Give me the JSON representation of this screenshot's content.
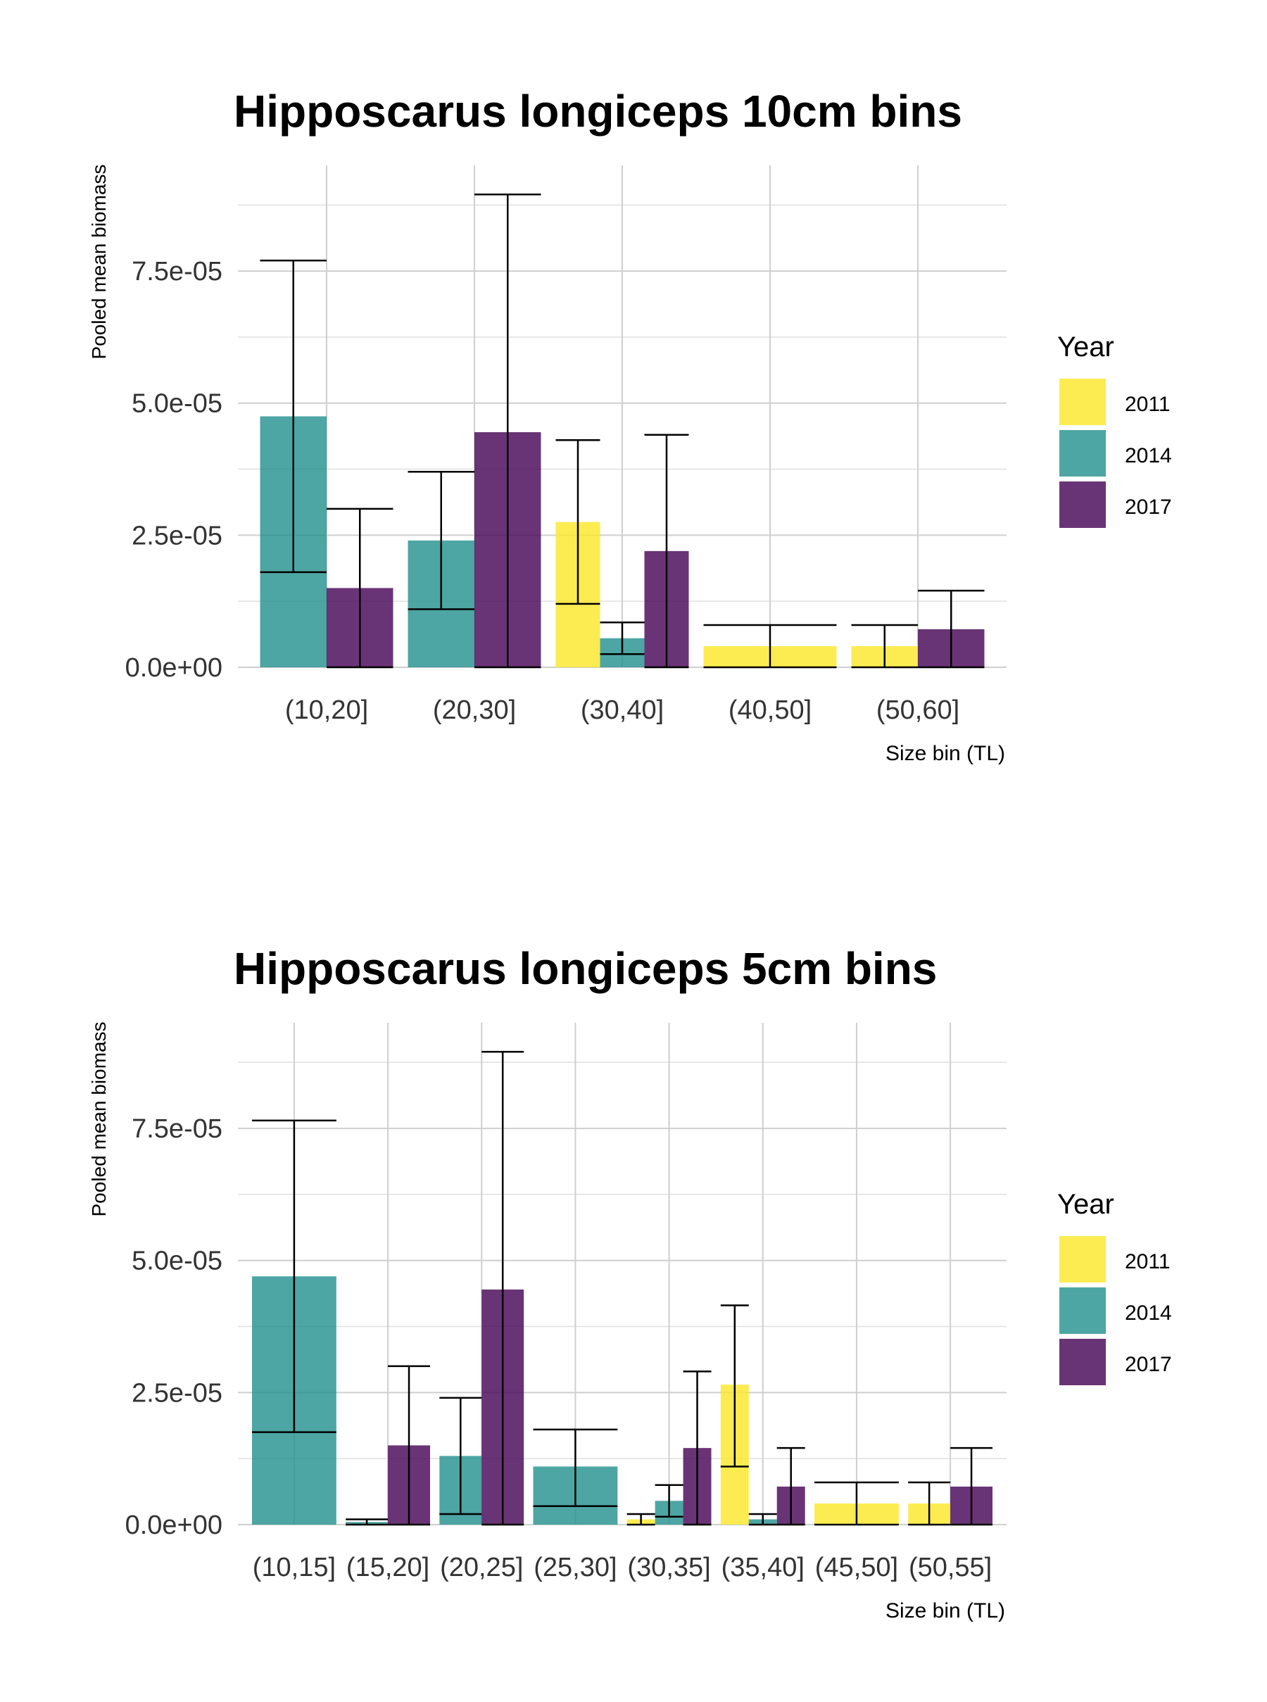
{
  "colors": {
    "2011": "#FDE725",
    "2014": "#21908C",
    "2017": "#440154"
  },
  "legend": {
    "title": "Year",
    "items": [
      "2011",
      "2014",
      "2017"
    ]
  },
  "chart_data": [
    {
      "type": "bar",
      "title": "Hipposcarus longiceps 10cm bins",
      "xlabel": "Size bin (TL)",
      "ylabel": "Pooled mean biomass",
      "ylim": [
        0,
        9.5e-05
      ],
      "yticks": [
        "0.0e+00",
        "2.5e-05",
        "5.0e-05",
        "7.5e-05"
      ],
      "ytick_values": [
        0,
        2.5e-05,
        5e-05,
        7.5e-05
      ],
      "grid": true,
      "legend_position": "right",
      "categories": [
        "(10,20]",
        "(20,30]",
        "(30,40]",
        "(40,50]",
        "(50,60]"
      ],
      "bars": [
        {
          "category": "(10,20]",
          "year": "2014",
          "slot": 0,
          "width": 2,
          "value": 4.75e-05,
          "err_low": 1.8e-05,
          "err_high": 7.7e-05
        },
        {
          "category": "(10,20]",
          "year": "2017",
          "slot": 1,
          "width": 2,
          "value": 1.5e-05,
          "err_low": 0.0,
          "err_high": 3e-05
        },
        {
          "category": "(20,30]",
          "year": "2014",
          "slot": 0,
          "width": 2,
          "value": 2.4e-05,
          "err_low": 1.1e-05,
          "err_high": 3.7e-05
        },
        {
          "category": "(20,30]",
          "year": "2017",
          "slot": 1,
          "width": 2,
          "value": 4.45e-05,
          "err_low": 0.0,
          "err_high": 8.95e-05
        },
        {
          "category": "(30,40]",
          "year": "2011",
          "slot": 0,
          "width": 3,
          "value": 2.75e-05,
          "err_low": 1.2e-05,
          "err_high": 4.3e-05
        },
        {
          "category": "(30,40]",
          "year": "2014",
          "slot": 1,
          "width": 3,
          "value": 5.5e-06,
          "err_low": 2.5e-06,
          "err_high": 8.5e-06
        },
        {
          "category": "(30,40]",
          "year": "2017",
          "slot": 2,
          "width": 3,
          "value": 2.2e-05,
          "err_low": 0.0,
          "err_high": 4.4e-05
        },
        {
          "category": "(40,50]",
          "year": "2011",
          "slot": 0,
          "width": 1,
          "value": 4e-06,
          "err_low": 0.0,
          "err_high": 8e-06
        },
        {
          "category": "(50,60]",
          "year": "2011",
          "slot": 0,
          "width": 2,
          "value": 4e-06,
          "err_low": 0.0,
          "err_high": 8e-06
        },
        {
          "category": "(50,60]",
          "year": "2017",
          "slot": 1,
          "width": 2,
          "value": 7.2e-06,
          "err_low": 0.0,
          "err_high": 1.45e-05
        }
      ]
    },
    {
      "type": "bar",
      "title": "Hipposcarus longiceps 5cm bins",
      "xlabel": "Size bin (TL)",
      "ylabel": "Pooled mean biomass",
      "ylim": [
        0,
        9.5e-05
      ],
      "yticks": [
        "0.0e+00",
        "2.5e-05",
        "5.0e-05",
        "7.5e-05"
      ],
      "ytick_values": [
        0,
        2.5e-05,
        5e-05,
        7.5e-05
      ],
      "grid": true,
      "legend_position": "right",
      "categories": [
        "(10,15]",
        "(15,20]",
        "(20,25]",
        "(25,30]",
        "(30,35]",
        "(35,40]",
        "(45,50]",
        "(50,55]"
      ],
      "bars": [
        {
          "category": "(10,15]",
          "year": "2014",
          "slot": 0,
          "width": 1,
          "value": 4.7e-05,
          "err_low": 1.75e-05,
          "err_high": 7.65e-05
        },
        {
          "category": "(15,20]",
          "year": "2014",
          "slot": 0,
          "width": 2,
          "value": 5e-07,
          "err_low": 0.0,
          "err_high": 1e-06
        },
        {
          "category": "(15,20]",
          "year": "2017",
          "slot": 1,
          "width": 2,
          "value": 1.5e-05,
          "err_low": 0.0,
          "err_high": 3e-05
        },
        {
          "category": "(20,25]",
          "year": "2014",
          "slot": 0,
          "width": 2,
          "value": 1.3e-05,
          "err_low": 2e-06,
          "err_high": 2.4e-05
        },
        {
          "category": "(20,25]",
          "year": "2017",
          "slot": 1,
          "width": 2,
          "value": 4.45e-05,
          "err_low": 0.0,
          "err_high": 8.95e-05
        },
        {
          "category": "(25,30]",
          "year": "2014",
          "slot": 0,
          "width": 1,
          "value": 1.1e-05,
          "err_low": 3.5e-06,
          "err_high": 1.8e-05
        },
        {
          "category": "(30,35]",
          "year": "2011",
          "slot": 0,
          "width": 3,
          "value": 1e-06,
          "err_low": 0.0,
          "err_high": 2e-06
        },
        {
          "category": "(30,35]",
          "year": "2014",
          "slot": 1,
          "width": 3,
          "value": 4.5e-06,
          "err_low": 1.5e-06,
          "err_high": 7.5e-06
        },
        {
          "category": "(30,35]",
          "year": "2017",
          "slot": 2,
          "width": 3,
          "value": 1.45e-05,
          "err_low": 0.0,
          "err_high": 2.9e-05
        },
        {
          "category": "(35,40]",
          "year": "2011",
          "slot": 0,
          "width": 3,
          "value": 2.65e-05,
          "err_low": 1.1e-05,
          "err_high": 4.15e-05
        },
        {
          "category": "(35,40]",
          "year": "2014",
          "slot": 1,
          "width": 3,
          "value": 1e-06,
          "err_low": 0.0,
          "err_high": 2e-06
        },
        {
          "category": "(35,40]",
          "year": "2017",
          "slot": 2,
          "width": 3,
          "value": 7.2e-06,
          "err_low": 0.0,
          "err_high": 1.45e-05
        },
        {
          "category": "(45,50]",
          "year": "2011",
          "slot": 0,
          "width": 1,
          "value": 4e-06,
          "err_low": 0.0,
          "err_high": 8e-06
        },
        {
          "category": "(50,55]",
          "year": "2011",
          "slot": 0,
          "width": 2,
          "value": 4e-06,
          "err_low": 0.0,
          "err_high": 8e-06
        },
        {
          "category": "(50,55]",
          "year": "2017",
          "slot": 1,
          "width": 2,
          "value": 7.2e-06,
          "err_low": 0.0,
          "err_high": 1.45e-05
        }
      ]
    }
  ]
}
